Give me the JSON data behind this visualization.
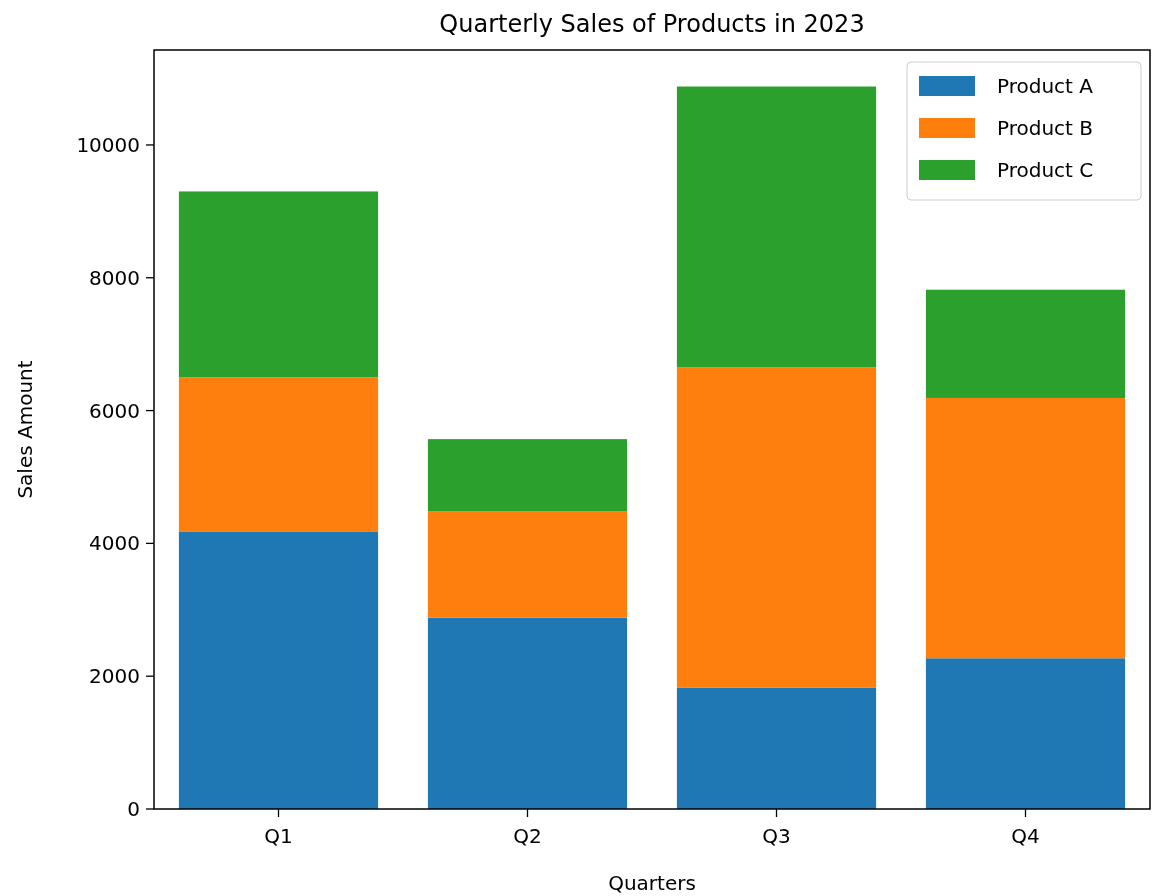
{
  "chart_data": {
    "type": "bar",
    "title": "Quarterly Sales of Products in 2023",
    "xlabel": "Quarters",
    "ylabel": "Sales Amount",
    "categories": [
      "Q1",
      "Q2",
      "Q3",
      "Q4"
    ],
    "stacked": true,
    "series": [
      {
        "name": "Product A",
        "color": "#1f77b4",
        "values": [
          4180,
          2880,
          1830,
          2270
        ]
      },
      {
        "name": "Product B",
        "color": "#ff7f0e",
        "values": [
          2320,
          1600,
          4820,
          3920
        ]
      },
      {
        "name": "Product C",
        "color": "#2ca02c",
        "values": [
          2800,
          1090,
          4230,
          1630
        ]
      }
    ],
    "ylim": [
      0,
      11430
    ],
    "yticks": [
      0,
      2000,
      4000,
      6000,
      8000,
      10000
    ],
    "legend": "top right"
  }
}
